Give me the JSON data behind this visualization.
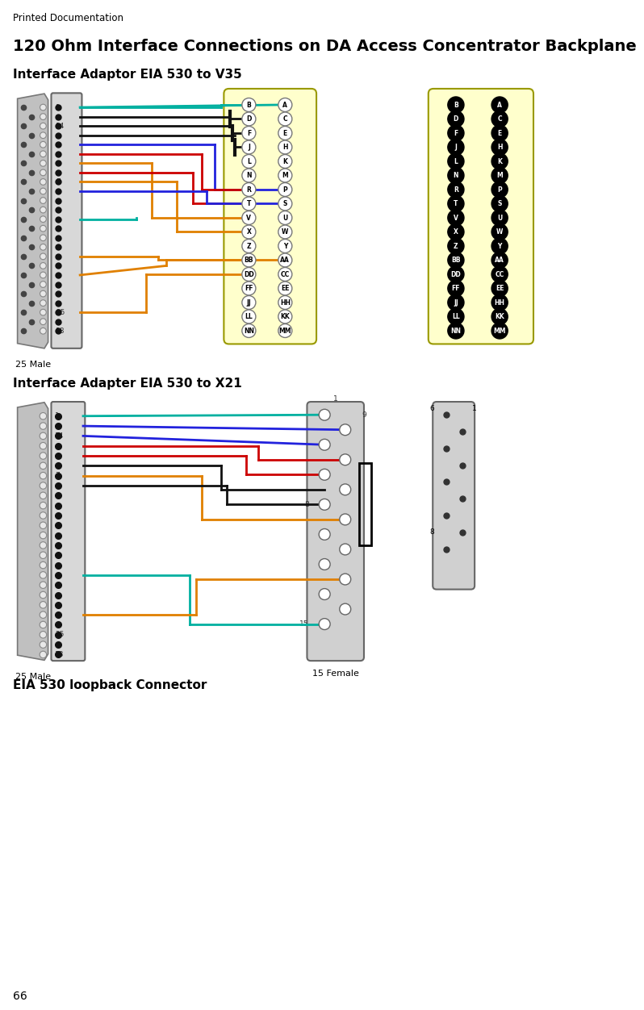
{
  "page_title": "Printed Documentation",
  "main_title": "120 Ohm Interface Connections on DA Access Concentrator Backplane",
  "section1_title": "Interface Adaptor EIA 530 to V35",
  "section2_title": "Interface Adapter EIA 530 to X21",
  "section3_title": "EIA 530 loopback Connector",
  "footer": "66",
  "bg_color": "#ffffff",
  "gray_conn": "#cccccc",
  "gray_conn_edge": "#888888",
  "yellow_conn": "#fffff0",
  "yellow_conn_edge": "#aaaa00",
  "v35_rows": [
    [
      "B",
      "A"
    ],
    [
      "D",
      "C"
    ],
    [
      "F",
      "E"
    ],
    [
      "J",
      "H"
    ],
    [
      "L",
      "K"
    ],
    [
      "N",
      "M"
    ],
    [
      "R",
      "P"
    ],
    [
      "T",
      "S"
    ],
    [
      "V",
      "U"
    ],
    [
      "X",
      "W"
    ],
    [
      "Z",
      "Y"
    ],
    [
      "BB",
      "AA"
    ],
    [
      "DD",
      "CC"
    ],
    [
      "FF",
      "EE"
    ],
    [
      "JJ",
      "HH"
    ],
    [
      "LL",
      "KK"
    ],
    [
      "NN",
      "MM"
    ]
  ],
  "teal": "#00b0a0",
  "blue": "#2222dd",
  "red": "#cc0000",
  "orange": "#e08000",
  "black": "#111111",
  "green": "#00aa00"
}
